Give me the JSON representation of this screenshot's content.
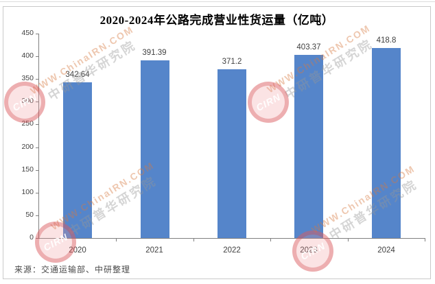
{
  "chart_data": {
    "type": "bar",
    "title": "2020-2024年公路完成营业性货运量（亿吨）",
    "categories": [
      "2020",
      "2021",
      "2022",
      "2023",
      "2024"
    ],
    "values": [
      342.64,
      391.39,
      371.2,
      403.37,
      418.8
    ],
    "value_labels": [
      "342.64",
      "391.39",
      "371.2",
      "403.37",
      "418.8"
    ],
    "xlabel": "",
    "ylabel": "",
    "ylim": [
      0,
      450
    ],
    "yticks": [
      0,
      50,
      100,
      150,
      200,
      250,
      300,
      350,
      400,
      450
    ],
    "grid": false,
    "legend": "none",
    "bar_color": "#5585ca",
    "axis_color": "#7f7f7f",
    "label_color": "#3f3f3f"
  },
  "source_note": "来源：交通运输部、中研整理",
  "watermark": {
    "url_text": "WWW.ChinaIRN.COM",
    "org_text": "中研普华研究院",
    "logo_text": "CIRN"
  }
}
